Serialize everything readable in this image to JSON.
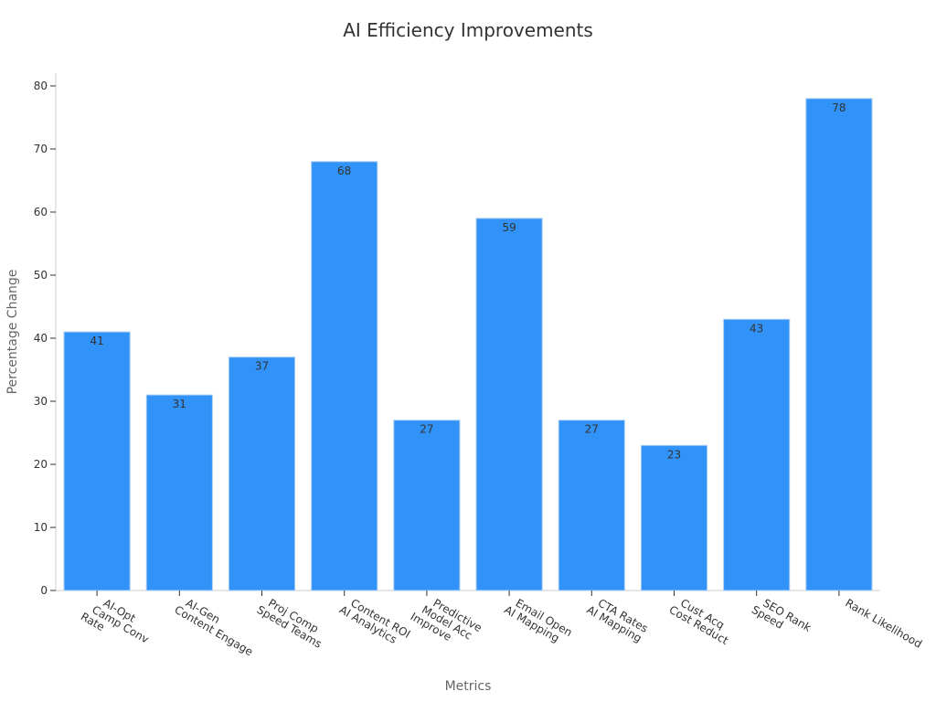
{
  "chart_data": {
    "type": "bar",
    "title": "AI Efficiency Improvements",
    "xlabel": "Metrics",
    "ylabel": "Percentage Change",
    "ylim": [
      0,
      82
    ],
    "yticks": [
      0,
      10,
      20,
      30,
      40,
      50,
      60,
      70,
      80
    ],
    "categories": [
      [
        "AI-Opt",
        "Camp Conv",
        "Rate"
      ],
      [
        "AI-Gen",
        "Content Engage"
      ],
      [
        "Proj Comp",
        "Speed Teams"
      ],
      [
        "Content ROI",
        "AI Analytics"
      ],
      [
        "Predictive",
        "Model Acc",
        "Improve"
      ],
      [
        "Email Open",
        "AI Mapping"
      ],
      [
        "CTA Rates",
        "AI Mapping"
      ],
      [
        "Cust Acq",
        "Cost Reduct"
      ],
      [
        "SEO Rank",
        "Speed"
      ],
      [
        "Rank Likelihood"
      ]
    ],
    "values": [
      41,
      31,
      37,
      68,
      27,
      59,
      27,
      23,
      43,
      78
    ],
    "bar_color": "#3192f8",
    "grid": false,
    "data_labels": true
  }
}
